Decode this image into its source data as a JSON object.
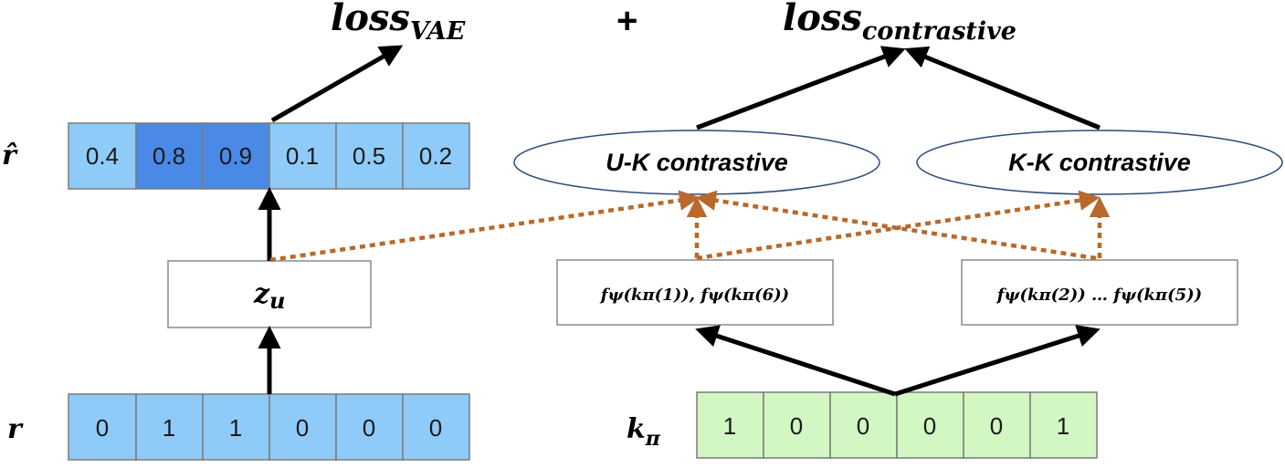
{
  "losses": {
    "vae": {
      "base": "loss",
      "sub": "VAE"
    },
    "plus": "+",
    "contrastive": {
      "base": "loss",
      "sub": "contrastive"
    }
  },
  "rows": {
    "r_hat": {
      "label": "r̂",
      "values": [
        "0.4",
        "0.8",
        "0.9",
        "0.1",
        "0.5",
        "0.2"
      ]
    },
    "r": {
      "label": "r",
      "values": [
        "0",
        "1",
        "1",
        "0",
        "0",
        "0"
      ]
    },
    "k_pi": {
      "label_base": "k",
      "label_sub": "π",
      "values": [
        "1",
        "0",
        "0",
        "0",
        "0",
        "1"
      ]
    }
  },
  "latent": {
    "base": "z",
    "sub": "u"
  },
  "ellipses": {
    "uk": "U-K contrastive",
    "kk": "K-K contrastive"
  },
  "encoded_boxes": {
    "left": "fψ(kπ(1)), fψ(kπ(6))",
    "right": "fψ(kπ(2)) … fψ(kπ(5))"
  },
  "colors": {
    "cell_light_blue": "#8ecbf8",
    "cell_dark_blue": "#4a8ae6",
    "cell_green": "#d2f7c2",
    "cell_border": "#7a7a7a",
    "ellipse_border": "#2e4a7a",
    "dotted_arrow": "#b8692b",
    "solid_arrow": "#000000"
  }
}
